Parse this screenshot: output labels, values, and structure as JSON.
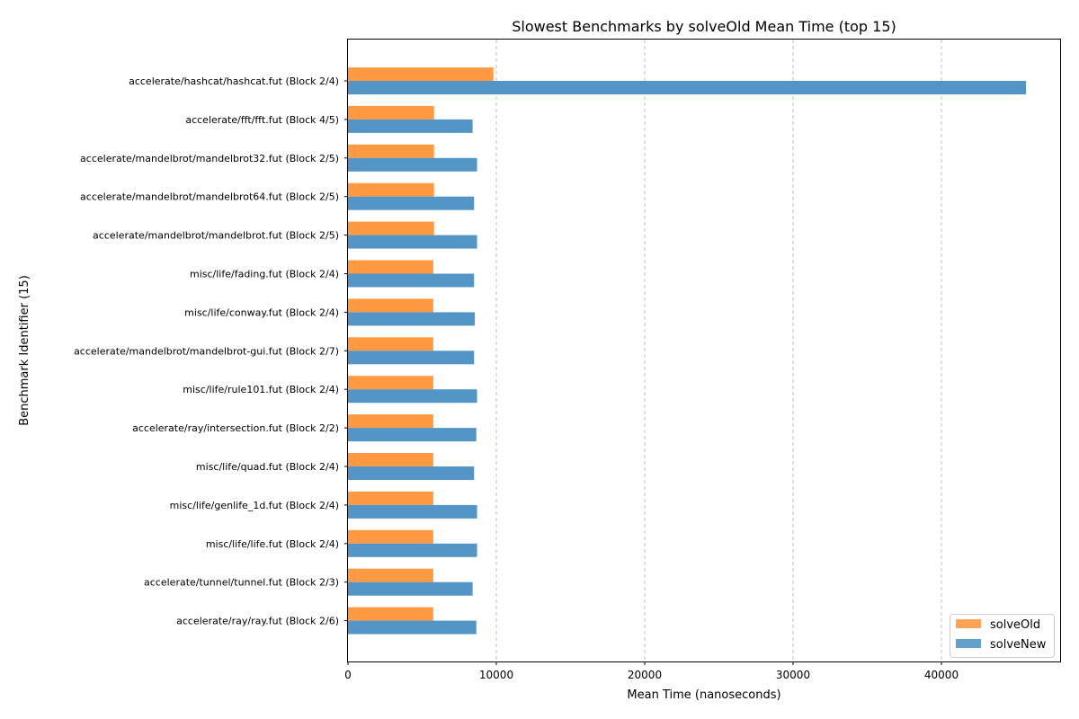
{
  "chart_data": {
    "type": "bar",
    "orientation": "horizontal",
    "title": "Slowest Benchmarks by solveOld Mean Time (top 15)",
    "xlabel": "Mean Time (nanoseconds)",
    "ylabel": "Benchmark Identifier (15)",
    "xlim": [
      0,
      48000
    ],
    "xticks": [
      0,
      10000,
      20000,
      30000,
      40000
    ],
    "grid": "x-dashed",
    "legend_position": "lower-right",
    "categories": [
      "accelerate/hashcat/hashcat.fut (Block 2/4)",
      "accelerate/fft/fft.fut (Block 4/5)",
      "accelerate/mandelbrot/mandelbrot32.fut (Block 2/5)",
      "accelerate/mandelbrot/mandelbrot64.fut (Block 2/5)",
      "accelerate/mandelbrot/mandelbrot.fut (Block 2/5)",
      "misc/life/fading.fut (Block 2/4)",
      "misc/life/conway.fut (Block 2/4)",
      "accelerate/mandelbrot/mandelbrot-gui.fut (Block 2/7)",
      "misc/life/rule101.fut (Block 2/4)",
      "accelerate/ray/intersection.fut (Block 2/2)",
      "misc/life/quad.fut (Block 2/4)",
      "misc/life/genlife_1d.fut (Block 2/4)",
      "misc/life/life.fut (Block 2/4)",
      "accelerate/tunnel/tunnel.fut (Block 2/3)",
      "accelerate/ray/ray.fut (Block 2/6)"
    ],
    "series": [
      {
        "name": "solveOld",
        "color": "#ff9438",
        "values": [
          9800,
          5800,
          5800,
          5800,
          5800,
          5750,
          5750,
          5750,
          5750,
          5750,
          5750,
          5750,
          5750,
          5750,
          5750
        ]
      },
      {
        "name": "solveNew",
        "color": "#4a8fc4",
        "values": [
          45700,
          8400,
          8700,
          8500,
          8700,
          8500,
          8550,
          8500,
          8700,
          8650,
          8500,
          8700,
          8700,
          8400,
          8650
        ]
      }
    ]
  }
}
